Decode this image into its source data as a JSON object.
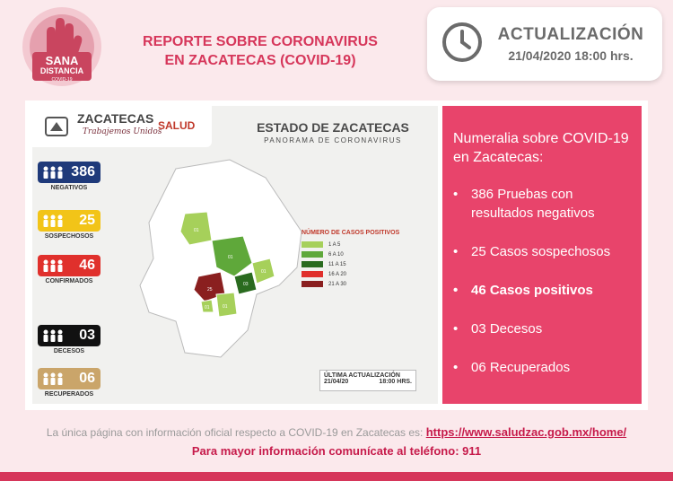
{
  "logo": {
    "line1": "SANA",
    "line2": "DISTANCIA",
    "line3": "COVID-19"
  },
  "header": {
    "title_line1": "REPORTE SOBRE CORONAVIRUS",
    "title_line2": "EN ZACATECAS  (COVID-19)"
  },
  "update": {
    "label": "ACTUALIZACIÓN",
    "datetime": "21/04/2020 18:00 hrs."
  },
  "infographic": {
    "brand": "ZACATECAS",
    "brand_sub": "Trabajemos Unidos",
    "brand_health": "SALUD",
    "state_title": "ESTADO DE ZACATECAS",
    "state_sub": "PANORAMA DE CORONAVIRUS",
    "stats": [
      {
        "value": "386",
        "label": "NEGATIVOS",
        "color": "#1f3a7a"
      },
      {
        "value": "25",
        "label": "SOSPECHOSOS",
        "color": "#f2c418"
      },
      {
        "value": "46",
        "label": "CONFIRMADOS",
        "color": "#e0302c"
      },
      {
        "value": "03",
        "label": "DECESOS",
        "color": "#111111"
      },
      {
        "value": "06",
        "label": "RECUPERADOS",
        "color": "#caa56a"
      }
    ],
    "legend_title": "NÚMERO DE CASOS POSITIVOS",
    "legend": [
      {
        "range": "1 A 5",
        "color": "#a6d05a"
      },
      {
        "range": "6 A 10",
        "color": "#5fa83a"
      },
      {
        "range": "11 A 15",
        "color": "#2a6b1f"
      },
      {
        "range": "16 A 20",
        "color": "#e0302c"
      },
      {
        "range": "21 A 30",
        "color": "#8a1f1f"
      }
    ],
    "map_labels": [
      "01",
      "01",
      "25",
      "01",
      "03",
      "01",
      "01"
    ],
    "last_update_label": "ÚLTIMA ACTUALIZACIÓN",
    "last_update_date": "21/04/20",
    "last_update_time": "18:00 HRS."
  },
  "figures": {
    "title": "Numeralia sobre COVID-19 en Zacatecas:",
    "items": [
      "386 Pruebas con resultados negativos",
      "25 Casos sospechosos",
      "46 Casos positivos",
      "03 Decesos",
      "06 Recuperados"
    ]
  },
  "footer": {
    "text": "La única página con información oficial respecto a COVID-19 en Zacatecas es:",
    "link": "https://www.saludzac.gob.mx/home/",
    "phone_line": "Para mayor información comunícate al teléfono: 911"
  },
  "colors": {
    "accent": "#d6365a",
    "figures_bg": "#e8446b",
    "background": "#fbe9ec"
  }
}
